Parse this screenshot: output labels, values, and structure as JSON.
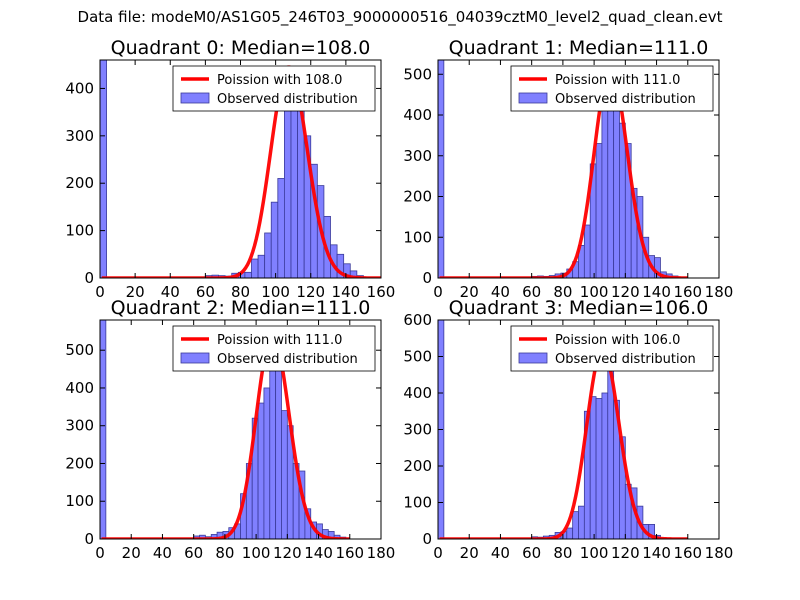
{
  "figure": {
    "suptitle": "Data file: modeM0/AS1G05_246T03_9000000516_04039cztM0_level2_quad_clean.evt"
  },
  "colors": {
    "bar_fill": "#8080ff",
    "bar_edge": "#3a3a9a",
    "curve": "#ff0000",
    "axis": "#000000"
  },
  "chart_data": [
    {
      "type": "bar",
      "title": "Quadrant 0: Median=108.0",
      "xlim": [
        0,
        160
      ],
      "ylim": [
        0,
        460
      ],
      "xticks": [
        0,
        20,
        40,
        60,
        80,
        100,
        120,
        140,
        160
      ],
      "yticks": [
        0,
        100,
        200,
        300,
        400
      ],
      "legend": {
        "line": "Poission with 108.0",
        "bars": "Observed distribution",
        "position": "top-right"
      },
      "mean": 108,
      "peak": 445,
      "bin_width": 3.75,
      "bins": [
        [
          0,
          460
        ],
        [
          60,
          5
        ],
        [
          63.75,
          6
        ],
        [
          67.5,
          5
        ],
        [
          71.25,
          4
        ],
        [
          75,
          10
        ],
        [
          78.75,
          12
        ],
        [
          82.5,
          12
        ],
        [
          86.25,
          40
        ],
        [
          90,
          48
        ],
        [
          93.75,
          95
        ],
        [
          97.5,
          160
        ],
        [
          101.25,
          210
        ],
        [
          105,
          390
        ],
        [
          108.75,
          380
        ],
        [
          112.5,
          440
        ],
        [
          116.25,
          300
        ],
        [
          120,
          240
        ],
        [
          123.75,
          195
        ],
        [
          127.5,
          130
        ],
        [
          131.25,
          70
        ],
        [
          135,
          50
        ],
        [
          138.75,
          30
        ],
        [
          142.5,
          15
        ],
        [
          146.25,
          5
        ]
      ]
    },
    {
      "type": "bar",
      "title": "Quadrant 1: Median=111.0",
      "xlim": [
        0,
        180
      ],
      "ylim": [
        0,
        535
      ],
      "xticks": [
        0,
        20,
        40,
        60,
        80,
        100,
        120,
        140,
        160,
        180
      ],
      "yticks": [
        0,
        100,
        200,
        300,
        400,
        500
      ],
      "legend": {
        "line": "Poission with 111.0",
        "bars": "Observed distribution",
        "position": "top-right"
      },
      "mean": 111,
      "peak": 513,
      "bin_width": 3.75,
      "bins": [
        [
          0,
          535
        ],
        [
          60,
          4
        ],
        [
          63.75,
          5
        ],
        [
          67.5,
          4
        ],
        [
          71.25,
          6
        ],
        [
          75,
          10
        ],
        [
          78.75,
          12
        ],
        [
          82.5,
          22
        ],
        [
          86.25,
          40
        ],
        [
          90,
          80
        ],
        [
          93.75,
          130
        ],
        [
          97.5,
          280
        ],
        [
          101.25,
          330
        ],
        [
          105,
          420
        ],
        [
          108.75,
          500
        ],
        [
          112.5,
          440
        ],
        [
          116.25,
          380
        ],
        [
          120,
          330
        ],
        [
          123.75,
          220
        ],
        [
          127.5,
          200
        ],
        [
          131.25,
          100
        ],
        [
          135,
          55
        ],
        [
          138.75,
          50
        ],
        [
          142.5,
          15
        ],
        [
          146.25,
          10
        ],
        [
          150,
          5
        ]
      ]
    },
    {
      "type": "bar",
      "title": "Quadrant 2: Median=111.0",
      "xlim": [
        0,
        180
      ],
      "ylim": [
        0,
        580
      ],
      "xticks": [
        0,
        20,
        40,
        60,
        80,
        100,
        120,
        140,
        160,
        180
      ],
      "yticks": [
        0,
        100,
        200,
        300,
        400,
        500
      ],
      "legend": {
        "line": "Poission with 111.0",
        "bars": "Observed distribution",
        "position": "top-right"
      },
      "mean": 111,
      "peak": 540,
      "bin_width": 3.75,
      "bins": [
        [
          0,
          580
        ],
        [
          60,
          8
        ],
        [
          63.75,
          10
        ],
        [
          67.5,
          6
        ],
        [
          71.25,
          12
        ],
        [
          75,
          18
        ],
        [
          78.75,
          20
        ],
        [
          82.5,
          30
        ],
        [
          86.25,
          40
        ],
        [
          90,
          120
        ],
        [
          93.75,
          200
        ],
        [
          97.5,
          320
        ],
        [
          101.25,
          360
        ],
        [
          105,
          400
        ],
        [
          108.75,
          530
        ],
        [
          112.5,
          520
        ],
        [
          116.25,
          340
        ],
        [
          120,
          300
        ],
        [
          123.75,
          200
        ],
        [
          127.5,
          180
        ],
        [
          131.25,
          80
        ],
        [
          135,
          45
        ],
        [
          138.75,
          40
        ],
        [
          142.5,
          25
        ],
        [
          146.25,
          20
        ],
        [
          150,
          10
        ],
        [
          153.75,
          5
        ]
      ]
    },
    {
      "type": "bar",
      "title": "Quadrant 3: Median=106.0",
      "xlim": [
        0,
        180
      ],
      "ylim": [
        0,
        600
      ],
      "xticks": [
        0,
        20,
        40,
        60,
        80,
        100,
        120,
        140,
        160,
        180
      ],
      "yticks": [
        0,
        100,
        200,
        300,
        400,
        500,
        600
      ],
      "legend": {
        "line": "Poission with 106.0",
        "bars": "Observed distribution",
        "position": "top-right"
      },
      "mean": 106,
      "peak": 520,
      "bin_width": 3.75,
      "bins": [
        [
          0,
          600
        ],
        [
          60,
          6
        ],
        [
          63.75,
          5
        ],
        [
          67.5,
          8
        ],
        [
          71.25,
          10
        ],
        [
          75,
          18
        ],
        [
          78.75,
          20
        ],
        [
          82.5,
          30
        ],
        [
          86.25,
          75
        ],
        [
          90,
          90
        ],
        [
          93.75,
          350
        ],
        [
          97.5,
          390
        ],
        [
          101.25,
          385
        ],
        [
          105,
          400
        ],
        [
          108.75,
          520
        ],
        [
          112.5,
          380
        ],
        [
          116.25,
          280
        ],
        [
          120,
          150
        ],
        [
          123.75,
          140
        ],
        [
          127.5,
          90
        ],
        [
          131.25,
          40
        ],
        [
          135,
          40
        ],
        [
          138.75,
          10
        ]
      ]
    }
  ]
}
